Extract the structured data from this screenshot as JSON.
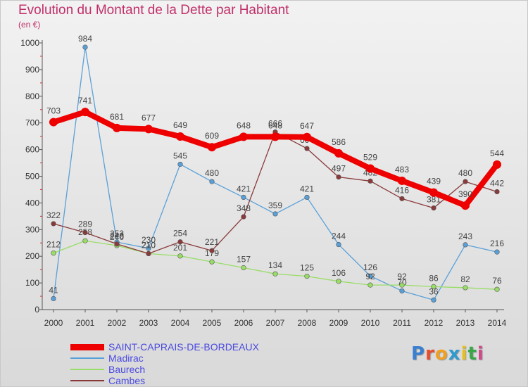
{
  "header": {
    "title": "Evolution du Montant de la Dette par Habitant",
    "unit": "(en €)"
  },
  "brand": {
    "name": "Proxiti",
    "letter_colors": [
      "#3a7fd0",
      "#e64c2e",
      "#f0a020",
      "#2e9ad0",
      "#e6c020",
      "#3aa64a",
      "#d04a8a"
    ]
  },
  "chart_data": {
    "type": "line",
    "title": "Evolution du Montant de la Dette par Habitant",
    "ylabel": "(en €)",
    "xlabel": "",
    "ylim": [
      0,
      1000
    ],
    "yticks": [
      0,
      100,
      200,
      300,
      400,
      500,
      600,
      700,
      800,
      900,
      1000
    ],
    "grid": false,
    "legend_position": "bottom-left",
    "x": [
      "2000",
      "2001",
      "2002",
      "2003",
      "2004",
      "2005",
      "2006",
      "2007",
      "2008",
      "2009",
      "2010",
      "2011",
      "2012",
      "2013",
      "2014"
    ],
    "series": [
      {
        "name": "SAINT-CAPRAIS-DE-BORDEAUX",
        "color": "#ee0000",
        "values": [
          703,
          741,
          681,
          677,
          649,
          609,
          648,
          648,
          647,
          586,
          529,
          483,
          439,
          390,
          544
        ]
      },
      {
        "name": "Madirac",
        "color": "#5aa0d8",
        "values": [
          41,
          984,
          253,
          230,
          545,
          480,
          421,
          359,
          421,
          244,
          126,
          70,
          36,
          243,
          216
        ]
      },
      {
        "name": "Baurech",
        "color": "#99dd66",
        "values": [
          212,
          258,
          240,
          210,
          201,
          179,
          157,
          134,
          125,
          106,
          92,
          92,
          86,
          82,
          76
        ]
      },
      {
        "name": "Cambes",
        "color": "#8a3a3a",
        "values": [
          322,
          289,
          246,
          210,
          254,
          221,
          348,
          666,
          604,
          497,
          482,
          416,
          381,
          480,
          442
        ]
      }
    ]
  }
}
